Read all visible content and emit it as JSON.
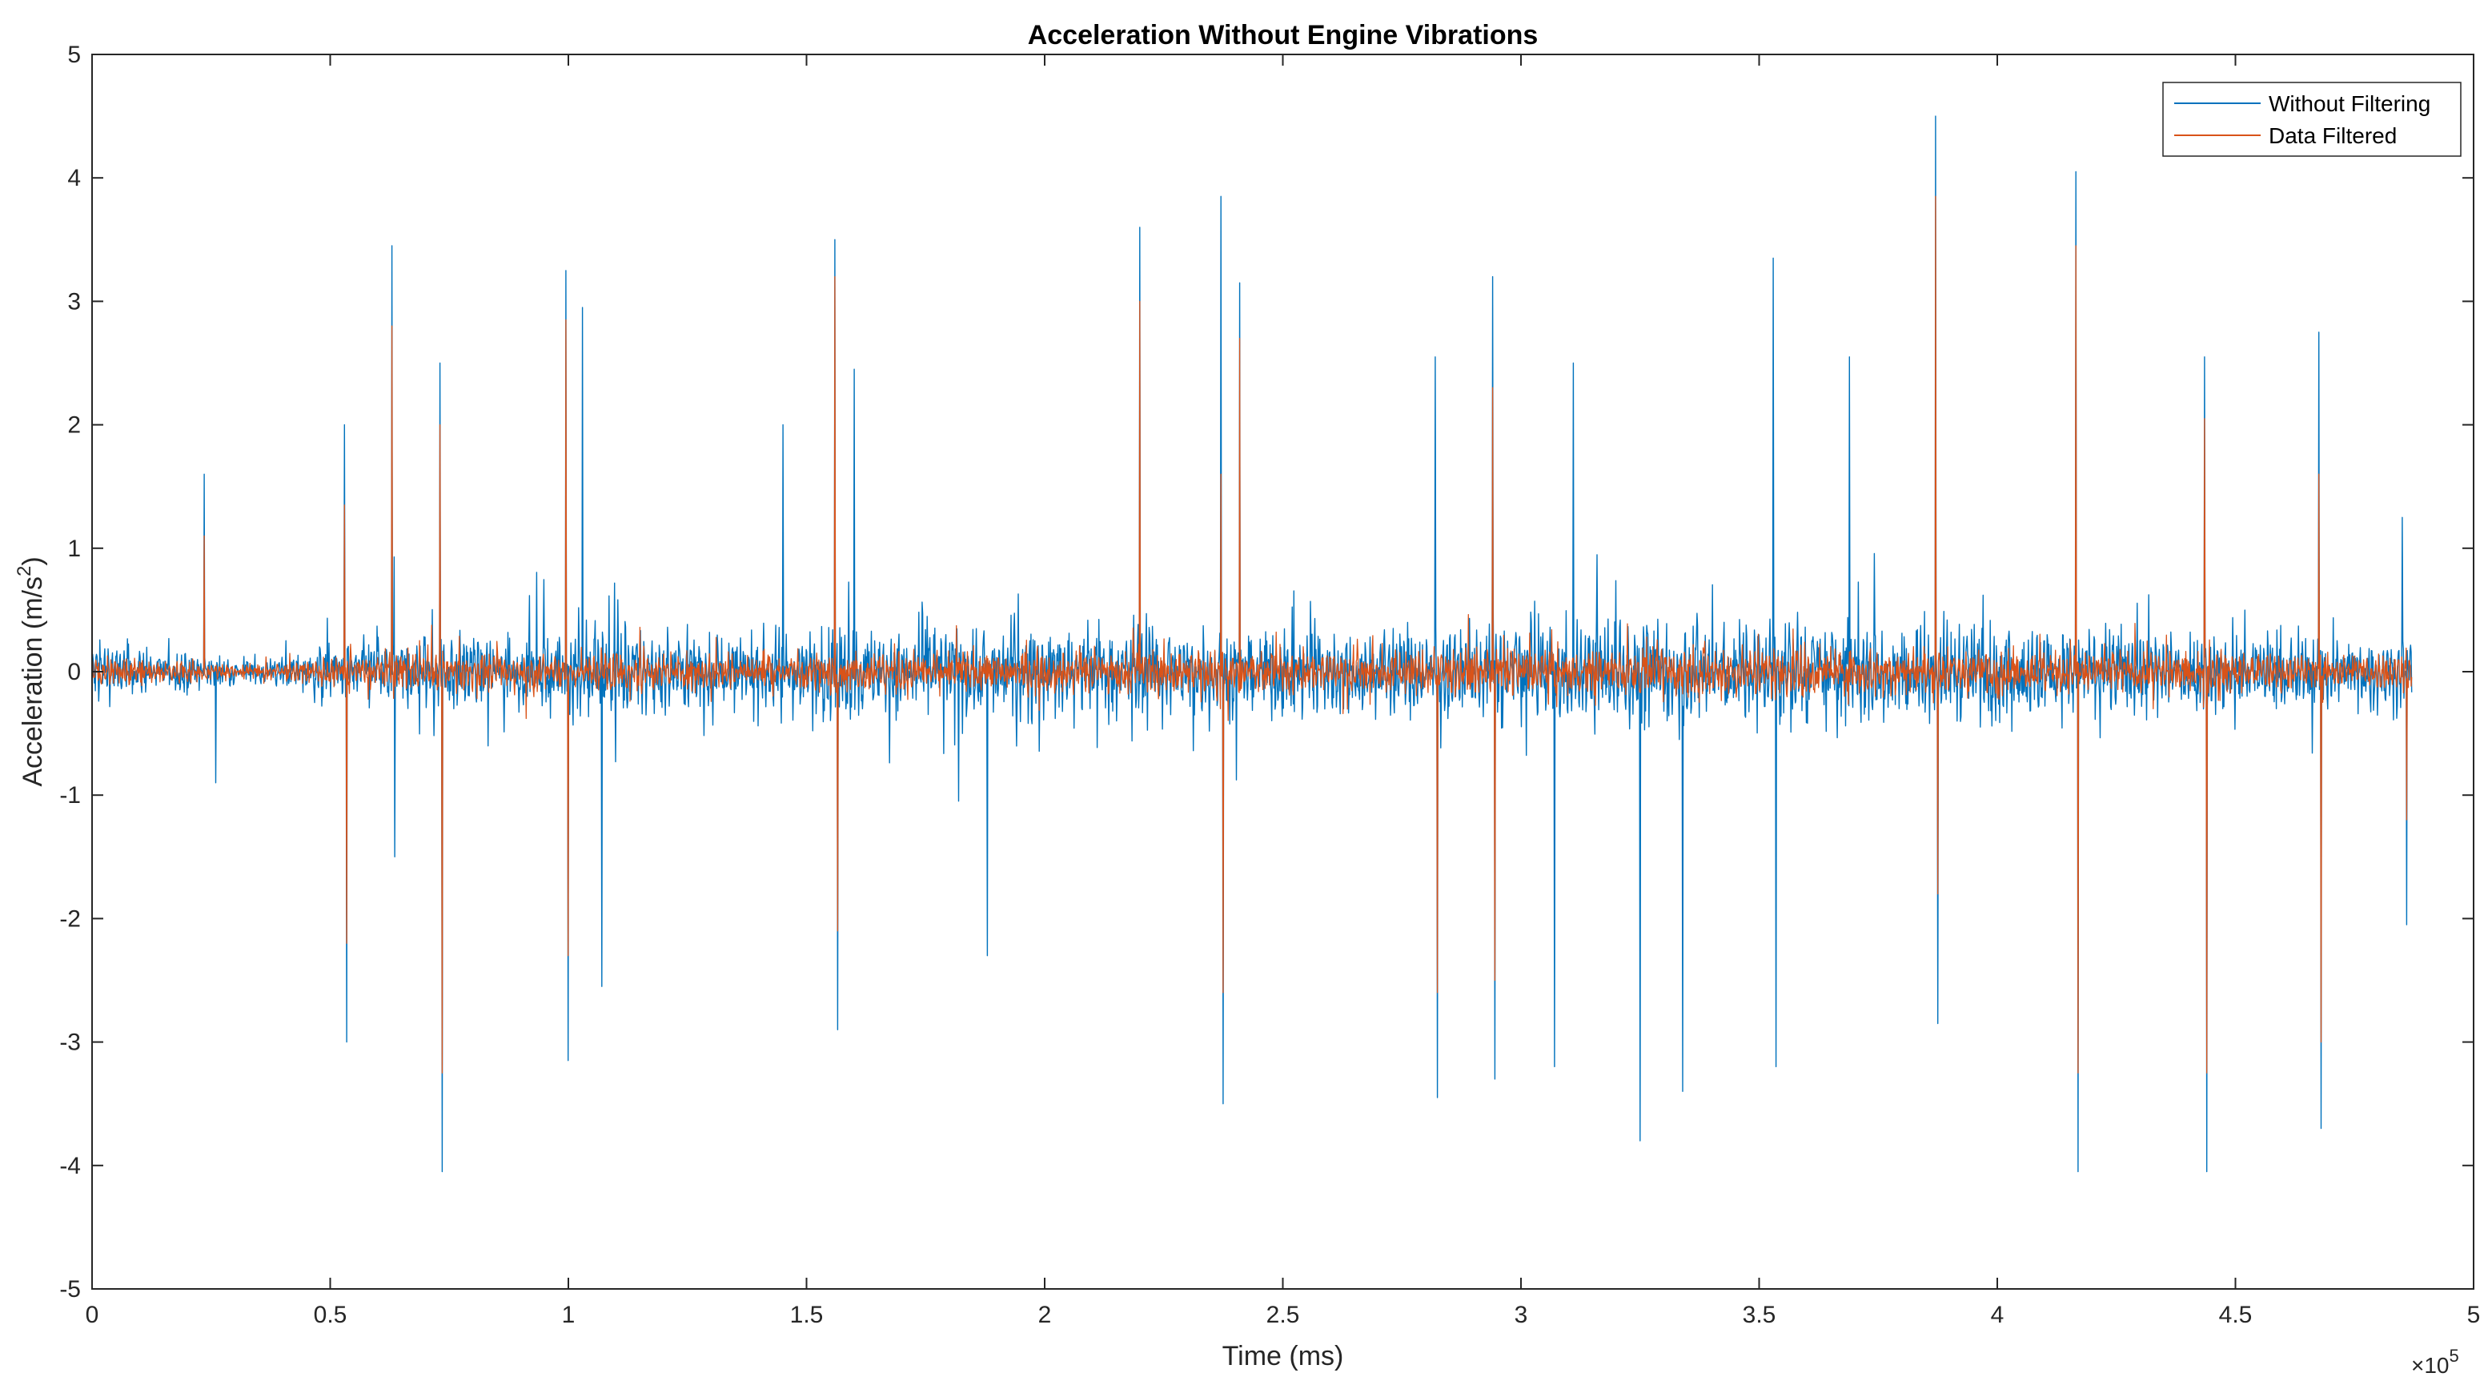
{
  "chart_data": {
    "type": "line",
    "title": "Acceleration Without Engine Vibrations",
    "xlabel": "Time (ms)",
    "ylabel_main": "Acceleration (m/s",
    "ylabel_sup": "2",
    "ylabel_tail": ")",
    "x_exponent_base": "×10",
    "x_exponent_power": "5",
    "xlim": [
      0,
      500000
    ],
    "ylim": [
      -5,
      5
    ],
    "x_tick_values": [
      0,
      50000,
      100000,
      150000,
      200000,
      250000,
      300000,
      350000,
      400000,
      450000,
      500000
    ],
    "x_tick_labels": [
      "0",
      "0.5",
      "1",
      "1.5",
      "2",
      "2.5",
      "3",
      "3.5",
      "4",
      "4.5",
      "5"
    ],
    "y_tick_values": [
      -5,
      -4,
      -3,
      -2,
      -1,
      0,
      1,
      2,
      3,
      4,
      5
    ],
    "y_tick_labels": [
      "-5",
      "-4",
      "-3",
      "-2",
      "-1",
      "0",
      "1",
      "2",
      "3",
      "4",
      "5"
    ],
    "grid": false,
    "legend_position": "top-right",
    "data_extent_x": [
      0,
      487000
    ],
    "series": [
      {
        "name": "Without Filtering",
        "color": "#0072BD",
        "noise_envelope": [
          [
            0,
            0.35
          ],
          [
            20000,
            0.25
          ],
          [
            30000,
            0.15
          ],
          [
            40000,
            0.2
          ],
          [
            60000,
            0.45
          ],
          [
            90000,
            0.4
          ],
          [
            110000,
            0.55
          ],
          [
            130000,
            0.4
          ],
          [
            160000,
            0.5
          ],
          [
            200000,
            0.55
          ],
          [
            240000,
            0.55
          ],
          [
            280000,
            0.5
          ],
          [
            320000,
            0.6
          ],
          [
            360000,
            0.6
          ],
          [
            390000,
            0.55
          ],
          [
            420000,
            0.5
          ],
          [
            460000,
            0.45
          ],
          [
            487000,
            0.4
          ]
        ],
        "spikes": [
          {
            "x": 23500,
            "y": 1.6
          },
          {
            "x": 26000,
            "y": -0.9
          },
          {
            "x": 53000,
            "y": 2.0
          },
          {
            "x": 53500,
            "y": -3.0
          },
          {
            "x": 63000,
            "y": 3.45
          },
          {
            "x": 63500,
            "y": -1.5
          },
          {
            "x": 73000,
            "y": 2.5
          },
          {
            "x": 73500,
            "y": -4.05
          },
          {
            "x": 99500,
            "y": 3.25
          },
          {
            "x": 100000,
            "y": -3.15
          },
          {
            "x": 103000,
            "y": 2.95
          },
          {
            "x": 107000,
            "y": -2.55
          },
          {
            "x": 145000,
            "y": 2.0
          },
          {
            "x": 156000,
            "y": 3.5
          },
          {
            "x": 156500,
            "y": -2.9
          },
          {
            "x": 160000,
            "y": 2.45
          },
          {
            "x": 188000,
            "y": -2.3
          },
          {
            "x": 220000,
            "y": 3.6
          },
          {
            "x": 237000,
            "y": 3.85
          },
          {
            "x": 237500,
            "y": -3.5
          },
          {
            "x": 241000,
            "y": 3.15
          },
          {
            "x": 282000,
            "y": 2.55
          },
          {
            "x": 282500,
            "y": -3.45
          },
          {
            "x": 294000,
            "y": 3.2
          },
          {
            "x": 294500,
            "y": -3.3
          },
          {
            "x": 307000,
            "y": -3.2
          },
          {
            "x": 311000,
            "y": 2.5
          },
          {
            "x": 325000,
            "y": -3.8
          },
          {
            "x": 334000,
            "y": -3.4
          },
          {
            "x": 353000,
            "y": 3.35
          },
          {
            "x": 353500,
            "y": -3.2
          },
          {
            "x": 369000,
            "y": 2.55
          },
          {
            "x": 387000,
            "y": 4.5
          },
          {
            "x": 387500,
            "y": -2.85
          },
          {
            "x": 416500,
            "y": 4.05
          },
          {
            "x": 417000,
            "y": -4.05
          },
          {
            "x": 443500,
            "y": 2.55
          },
          {
            "x": 444000,
            "y": -4.05
          },
          {
            "x": 467500,
            "y": 2.75
          },
          {
            "x": 468000,
            "y": -3.7
          },
          {
            "x": 485000,
            "y": 1.25
          },
          {
            "x": 486000,
            "y": -2.05
          }
        ]
      },
      {
        "name": "Data Filtered",
        "color": "#D95319",
        "noise_envelope": [
          [
            0,
            0.2
          ],
          [
            20000,
            0.12
          ],
          [
            30000,
            0.08
          ],
          [
            40000,
            0.1
          ],
          [
            60000,
            0.22
          ],
          [
            90000,
            0.2
          ],
          [
            110000,
            0.25
          ],
          [
            130000,
            0.2
          ],
          [
            160000,
            0.25
          ],
          [
            200000,
            0.25
          ],
          [
            240000,
            0.28
          ],
          [
            280000,
            0.25
          ],
          [
            320000,
            0.3
          ],
          [
            360000,
            0.3
          ],
          [
            390000,
            0.28
          ],
          [
            420000,
            0.25
          ],
          [
            460000,
            0.22
          ],
          [
            487000,
            0.2
          ]
        ],
        "spikes": [
          {
            "x": 23500,
            "y": 1.1
          },
          {
            "x": 53000,
            "y": 1.35
          },
          {
            "x": 53500,
            "y": -2.2
          },
          {
            "x": 63000,
            "y": 2.8
          },
          {
            "x": 73000,
            "y": 2.0
          },
          {
            "x": 73500,
            "y": -3.25
          },
          {
            "x": 99500,
            "y": 2.85
          },
          {
            "x": 100000,
            "y": -2.3
          },
          {
            "x": 156000,
            "y": 3.2
          },
          {
            "x": 156500,
            "y": -2.1
          },
          {
            "x": 220000,
            "y": 3.0
          },
          {
            "x": 237000,
            "y": 1.6
          },
          {
            "x": 237500,
            "y": -2.6
          },
          {
            "x": 241000,
            "y": 2.7
          },
          {
            "x": 282500,
            "y": -2.6
          },
          {
            "x": 294000,
            "y": 2.3
          },
          {
            "x": 294500,
            "y": -2.5
          },
          {
            "x": 387000,
            "y": 3.85
          },
          {
            "x": 387500,
            "y": -1.8
          },
          {
            "x": 416500,
            "y": 3.45
          },
          {
            "x": 417000,
            "y": -3.25
          },
          {
            "x": 443500,
            "y": 2.05
          },
          {
            "x": 444000,
            "y": -3.25
          },
          {
            "x": 467500,
            "y": 1.6
          },
          {
            "x": 468000,
            "y": -3.0
          },
          {
            "x": 486000,
            "y": -1.2
          }
        ]
      }
    ]
  }
}
